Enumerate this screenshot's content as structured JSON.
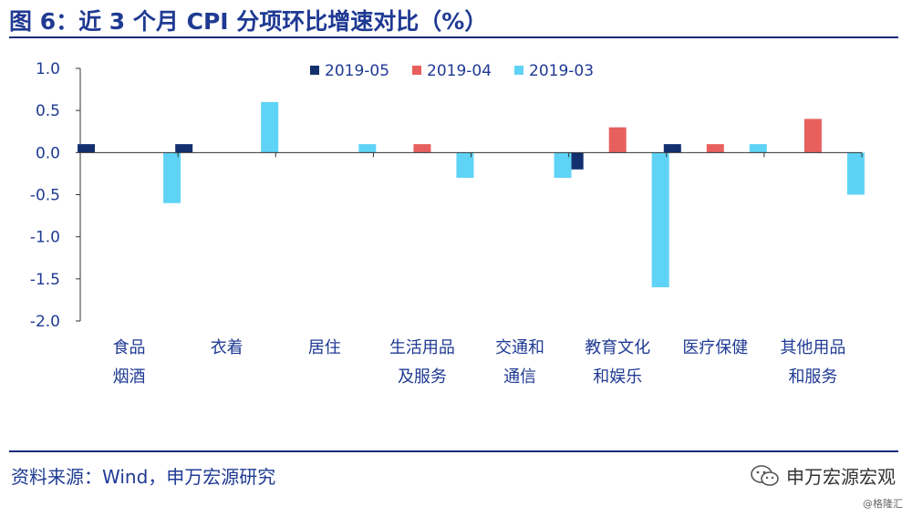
{
  "figure": {
    "title": "图 6：近 3 个月 CPI 分项环比增速对比（%）",
    "source": "资料来源：Wind，申万宏源研究",
    "brand": "申万宏源宏观",
    "brand_icon": "wechat-icon",
    "watermark": "@格隆汇"
  },
  "colors": {
    "title": "#1f3a93",
    "rule": "#1b2a7a",
    "series": [
      "#12306e",
      "#e8605e",
      "#5fd3f5"
    ]
  },
  "chart_data": {
    "type": "bar",
    "title": "图 6：近 3 个月 CPI 分项环比增速对比（%）",
    "categories": [
      [
        "食品",
        "烟酒"
      ],
      [
        "衣着"
      ],
      [
        "居住"
      ],
      [
        "生活用品",
        "及服务"
      ],
      [
        "交通和",
        "通信"
      ],
      [
        "教育文化",
        "和娱乐"
      ],
      [
        "医疗保健"
      ],
      [
        "其他用品",
        "和服务"
      ]
    ],
    "series": [
      {
        "name": "2019-05",
        "values": [
          0.1,
          0.1,
          0.0,
          0.0,
          0.0,
          -0.2,
          0.1,
          0.0
        ]
      },
      {
        "name": "2019-04",
        "values": [
          0.0,
          0.0,
          0.0,
          0.1,
          0.0,
          0.3,
          0.1,
          0.4
        ]
      },
      {
        "name": "2019-03",
        "values": [
          -0.6,
          0.6,
          0.1,
          -0.3,
          -0.3,
          -1.6,
          0.1,
          -0.5
        ]
      }
    ],
    "ylim": [
      -2.0,
      1.0
    ],
    "yticks": [
      "1.0",
      "0.5",
      "0.0",
      "-0.5",
      "-1.0",
      "-1.5",
      "-2.0"
    ],
    "ytick_values": [
      1.0,
      0.5,
      0.0,
      -0.5,
      -1.0,
      -1.5,
      -2.0
    ],
    "legend": "top-center",
    "grid": false,
    "xlabel": "",
    "ylabel": ""
  }
}
